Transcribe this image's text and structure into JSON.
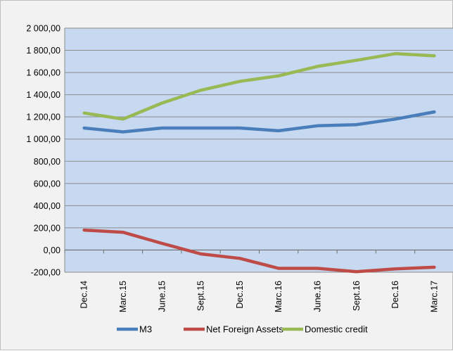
{
  "chart_data": {
    "type": "line",
    "title": "",
    "xlabel": "",
    "ylabel": "",
    "categories": [
      "Dec.14",
      "Marc.15",
      "June.15",
      "Sept.15",
      "Dec.15",
      "Marc.16",
      "June.16",
      "Sept.16",
      "Dec.16",
      "Marc.17"
    ],
    "ylim": [
      -200,
      2000
    ],
    "y_ticks": [
      {
        "value": -200,
        "label": "-200,00"
      },
      {
        "value": 0,
        "label": "0,00"
      },
      {
        "value": 200,
        "label": "200,00"
      },
      {
        "value": 400,
        "label": "400,00"
      },
      {
        "value": 600,
        "label": "600,00"
      },
      {
        "value": 800,
        "label": "800,00"
      },
      {
        "value": 1000,
        "label": "1 000,00"
      },
      {
        "value": 1200,
        "label": "1 200,00"
      },
      {
        "value": 1400,
        "label": "1 400,00"
      },
      {
        "value": 1600,
        "label": "1 600,00"
      },
      {
        "value": 1800,
        "label": "1 800,00"
      },
      {
        "value": 2000,
        "label": "2 000,00"
      }
    ],
    "grid": true,
    "legend_position": "bottom",
    "plot_background": "#c6d9f1",
    "series": [
      {
        "name": "M3",
        "color": "#4a7ebb",
        "values": [
          1100,
          1065,
          1100,
          1100,
          1100,
          1075,
          1120,
          1130,
          1180,
          1245
        ]
      },
      {
        "name": "Net Foreign Assets",
        "color": "#be4b48",
        "values": [
          180,
          160,
          60,
          -35,
          -75,
          -165,
          -165,
          -195,
          -170,
          -155
        ]
      },
      {
        "name": "Domestic credit",
        "color": "#98b954",
        "values": [
          1235,
          1180,
          1325,
          1440,
          1520,
          1570,
          1655,
          1710,
          1770,
          1750
        ]
      }
    ]
  }
}
